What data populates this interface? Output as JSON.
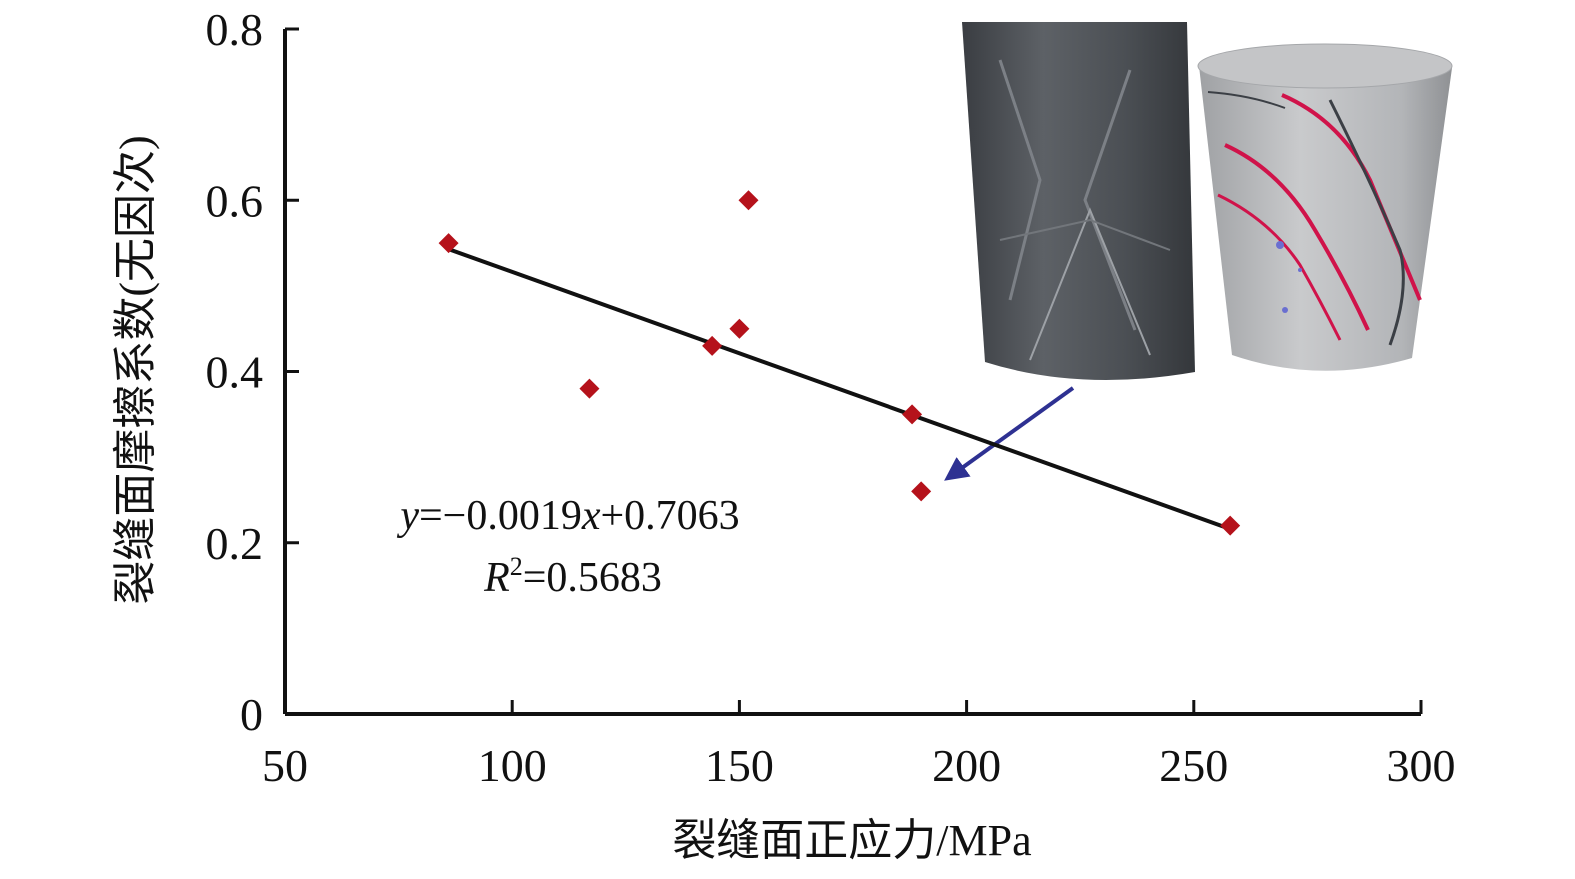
{
  "chart_data": {
    "type": "scatter",
    "title": "",
    "xlabel": "裂缝面正应力/MPa",
    "ylabel": "裂缝面摩擦系数(无因次)",
    "xlim": [
      50,
      300
    ],
    "ylim": [
      0,
      0.8
    ],
    "x_ticks": [
      "50",
      "100",
      "150",
      "200",
      "250",
      "300"
    ],
    "y_ticks": [
      "0",
      "0.2",
      "0.4",
      "0.6",
      "0.8"
    ],
    "grid": false,
    "points": [
      {
        "x": 86,
        "y": 0.55
      },
      {
        "x": 117,
        "y": 0.38
      },
      {
        "x": 144,
        "y": 0.43
      },
      {
        "x": 150,
        "y": 0.45
      },
      {
        "x": 152,
        "y": 0.6
      },
      {
        "x": 188,
        "y": 0.35
      },
      {
        "x": 190,
        "y": 0.26
      },
      {
        "x": 258,
        "y": 0.22
      }
    ],
    "trendline": {
      "slope": -0.0019,
      "intercept": 0.7063,
      "x_start": 86,
      "x_end": 258
    },
    "equation": {
      "y_var": "y",
      "eq_text": "=−0.0019",
      "x_var": "x",
      "eq_tail": "+0.7063",
      "r_var": "R",
      "r_sup": "2",
      "r_text": "=0.5683"
    },
    "colors": {
      "marker": "#b5121b",
      "trendline": "#111111",
      "arrow": "#2e3192"
    },
    "insets": [
      "ct-core-image",
      "fracture-model-image"
    ]
  }
}
